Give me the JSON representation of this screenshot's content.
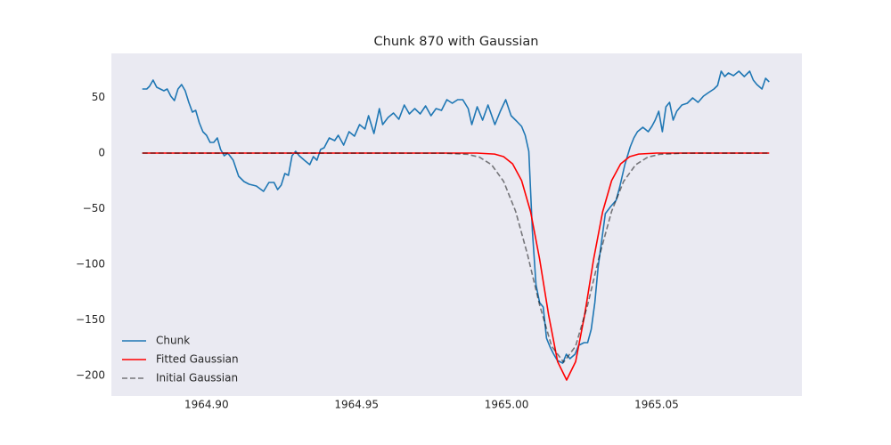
{
  "chart_data": {
    "type": "line",
    "title": "Chunk 870 with Gaussian",
    "xlim": [
      1964.8683,
      1965.0984
    ],
    "ylim": [
      -218.4,
      89.6
    ],
    "xticks": [
      {
        "value": 1964.9,
        "label": "1964.90"
      },
      1964.95,
      {
        "value": 1965.0,
        "label": "1965.00"
      },
      1965.05
    ],
    "yticks": [
      {
        "value": -200,
        "label": "−200"
      },
      {
        "value": -150,
        "label": "−150"
      },
      {
        "value": -100,
        "label": "−100"
      },
      {
        "value": -50,
        "label": "−50"
      },
      0,
      50
    ],
    "grid": false,
    "legend": "lower left",
    "background": "#eaeaf2",
    "series": [
      {
        "name": "Chunk",
        "color": "#1f77b4",
        "dash": false,
        "x": [
          1964.8786,
          1964.8801,
          1964.881,
          1964.8822,
          1964.8834,
          1964.8846,
          1964.8858,
          1964.8869,
          1964.8881,
          1964.8893,
          1964.8905,
          1964.8917,
          1964.8929,
          1964.8941,
          1964.8953,
          1964.8964,
          1964.8976,
          1964.8988,
          1964.9,
          1964.9012,
          1964.9024,
          1964.9036,
          1964.9047,
          1964.9059,
          1964.9071,
          1964.9089,
          1964.9107,
          1964.9125,
          1964.9142,
          1964.9166,
          1964.919,
          1964.9208,
          1964.9225,
          1964.9237,
          1964.9249,
          1964.9261,
          1964.9273,
          1964.9285,
          1964.9297,
          1964.9309,
          1964.9326,
          1964.9344,
          1964.9356,
          1964.9368,
          1964.938,
          1964.9392,
          1964.9409,
          1964.9427,
          1964.9439,
          1964.9457,
          1964.9475,
          1964.9493,
          1964.951,
          1964.9528,
          1964.954,
          1964.9558,
          1964.9576,
          1964.9587,
          1964.9605,
          1964.9623,
          1964.9641,
          1964.9659,
          1964.9676,
          1964.9694,
          1964.9712,
          1964.973,
          1964.9748,
          1964.9765,
          1964.9783,
          1964.9801,
          1964.9819,
          1964.9837,
          1964.9854,
          1964.9872,
          1964.9884,
          1964.9902,
          1964.992,
          1964.9938,
          1964.9961,
          1964.9979,
          1964.9997,
          1965.0015,
          1965.0033,
          1965.005,
          1965.0062,
          1965.0074,
          1965.0086,
          1965.0098,
          1965.011,
          1965.0122,
          1965.0133,
          1965.0145,
          1965.0157,
          1965.0169,
          1965.0187,
          1965.0199,
          1965.0211,
          1965.0228,
          1965.024,
          1965.0258,
          1965.027,
          1965.0282,
          1965.0294,
          1965.0305,
          1965.0317,
          1965.0329,
          1965.0347,
          1965.0365,
          1965.0377,
          1965.0394,
          1965.0412,
          1965.0424,
          1965.0436,
          1965.0454,
          1965.0472,
          1965.0484,
          1965.0495,
          1965.0507,
          1965.0519,
          1965.0531,
          1965.0543,
          1965.0555,
          1965.0567,
          1965.0584,
          1965.0602,
          1965.062,
          1965.0638,
          1965.0656,
          1965.0673,
          1965.0691,
          1965.0703,
          1965.0715,
          1965.0727,
          1965.0739,
          1965.0756,
          1965.0774,
          1965.0792,
          1965.081,
          1965.0822,
          1965.0834,
          1965.0851,
          1965.0863,
          1965.0875
        ],
        "values": [
          57.6,
          57.6,
          60,
          65.6,
          59.2,
          57.6,
          56,
          57.6,
          51.2,
          47.2,
          57.6,
          61.6,
          56,
          45.6,
          36.8,
          38.4,
          27.2,
          19.2,
          16,
          9.6,
          9.6,
          13.6,
          3.2,
          -2.4,
          0,
          -6.4,
          -20.8,
          -25.6,
          -28,
          -29.6,
          -34.4,
          -26.4,
          -26.4,
          -32.8,
          -28.8,
          -18.4,
          -20,
          -2.4,
          1.6,
          -2.4,
          -6.4,
          -10.4,
          -3.2,
          -6.4,
          3.2,
          4.8,
          13.6,
          11.2,
          16,
          7.2,
          19.2,
          15.2,
          25.6,
          21.6,
          33.6,
          17.6,
          40,
          25.6,
          32,
          36,
          30.4,
          43.2,
          35.2,
          40,
          35.2,
          42.4,
          33.6,
          40,
          38.4,
          48,
          44.8,
          48,
          48,
          40,
          25.6,
          41.6,
          29.6,
          43.2,
          25.6,
          37.6,
          48,
          33.6,
          28.8,
          24,
          16,
          1.6,
          -70.4,
          -118.4,
          -134.4,
          -138.4,
          -166.4,
          -174.4,
          -180.8,
          -186.4,
          -188.8,
          -180.8,
          -184.8,
          -180.8,
          -172.8,
          -170.4,
          -170.4,
          -158.4,
          -134.4,
          -102.4,
          -78.4,
          -54.4,
          -48,
          -42.4,
          -30.4,
          -10.4,
          5.6,
          13.6,
          19.2,
          23.2,
          19.2,
          24,
          29.6,
          37.6,
          19.2,
          41.6,
          45.6,
          29.6,
          37.6,
          43.2,
          44.8,
          49.6,
          45.6,
          51.2,
          54.4,
          57.6,
          60.8,
          73.6,
          68.8,
          72,
          69.6,
          73.6,
          68.8,
          73.6,
          65.6,
          61.6,
          57.6,
          67.2,
          64
        ]
      },
      {
        "name": "Fitted Gaussian",
        "color": "#ff0000",
        "dash": false,
        "x": [
          1964.8786,
          1964.99,
          1964.996,
          1964.999,
          1965.002,
          1965.005,
          1965.008,
          1965.011,
          1965.014,
          1965.017,
          1965.02,
          1965.023,
          1965.026,
          1965.029,
          1965.032,
          1965.035,
          1965.038,
          1965.041,
          1965.044,
          1965.05,
          1965.0875
        ],
        "values": [
          0,
          0,
          -0.9,
          -3.2,
          -9.7,
          -24.7,
          -52.8,
          -95.3,
          -145.5,
          -187.5,
          -204,
          -187.5,
          -145.5,
          -95.3,
          -52.8,
          -24.7,
          -9.7,
          -3.2,
          -0.9,
          0,
          0
        ]
      },
      {
        "name": "Initial Gaussian",
        "color": "#000000",
        "opacity": 0.5,
        "dash": true,
        "x": [
          1964.8786,
          1964.979,
          1964.987,
          1964.991,
          1964.995,
          1964.999,
          1965.003,
          1965.007,
          1965.011,
          1965.015,
          1965.019,
          1965.023,
          1965.027,
          1965.031,
          1965.035,
          1965.039,
          1965.043,
          1965.047,
          1965.051,
          1965.059,
          1965.0875
        ],
        "values": [
          0,
          -0.1,
          -1.1,
          -3.7,
          -10.5,
          -25.4,
          -52.3,
          -91.6,
          -136.5,
          -173.5,
          -188,
          -173.5,
          -136.5,
          -91.6,
          -52.3,
          -25.4,
          -10.5,
          -3.7,
          -1.1,
          -0.1,
          0
        ]
      }
    ]
  }
}
